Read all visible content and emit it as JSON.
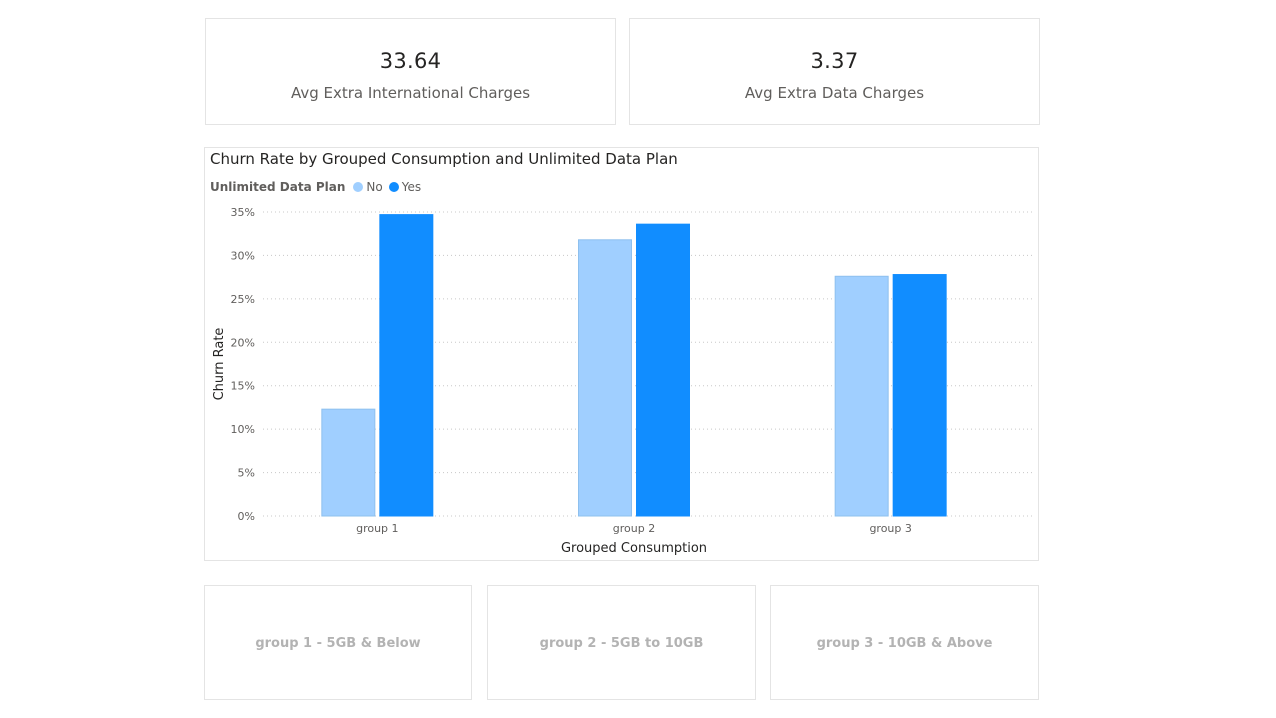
{
  "kpis": [
    {
      "value": "33.64",
      "label": "Avg Extra International Charges"
    },
    {
      "value": "3.37",
      "label": "Avg Extra Data Charges"
    }
  ],
  "chart": {
    "title": "Churn Rate by Grouped Consumption and Unlimited Data Plan",
    "legend_title": "Unlimited Data Plan",
    "legend_items": [
      "No",
      "Yes"
    ]
  },
  "colors": {
    "no": "#a0cfff",
    "yes": "#118dff",
    "grid": "#c8c8c8",
    "axis_text": "#605e5c"
  },
  "chart_data": {
    "type": "bar",
    "title": "Churn Rate by Grouped Consumption and Unlimited Data Plan",
    "xlabel": "Grouped Consumption",
    "ylabel": "Churn Rate",
    "categories": [
      "group 1",
      "group 2",
      "group 3"
    ],
    "series": [
      {
        "name": "No",
        "values": [
          12.3,
          31.8,
          27.6
        ]
      },
      {
        "name": "Yes",
        "values": [
          34.7,
          33.6,
          27.8
        ]
      }
    ],
    "ylim": [
      0,
      35
    ],
    "yticks": [
      "0%",
      "5%",
      "10%",
      "15%",
      "20%",
      "25%",
      "30%",
      "35%"
    ],
    "grid": true,
    "legend": "top-left"
  },
  "slicers": [
    {
      "label": "group 1 - 5GB & Below"
    },
    {
      "label": "group 2 - 5GB to 10GB"
    },
    {
      "label": "group 3 - 10GB & Above"
    }
  ]
}
